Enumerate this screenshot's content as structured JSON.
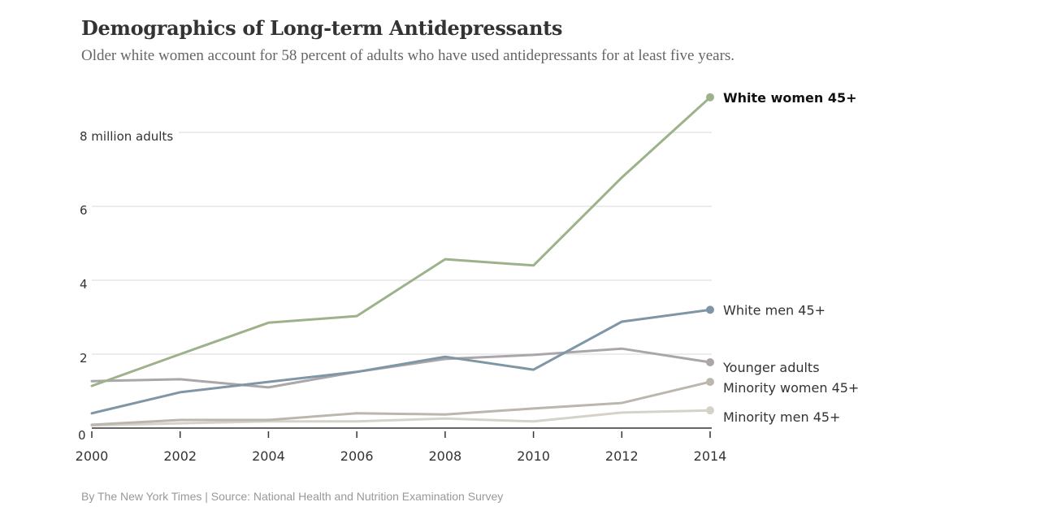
{
  "header": {
    "title": "Demographics of Long-term Antidepressants",
    "subtitle": "Older white women account for 58 percent of adults who have used antidepressants for at least five years."
  },
  "footer": {
    "credit": "By The New York Times | Source: National Health and Nutrition Examination Survey"
  },
  "chart_data": {
    "type": "line",
    "title": "Demographics of Long-term Antidepressants",
    "xlabel": "",
    "ylabel": "million adults",
    "x": [
      2000,
      2002,
      2004,
      2006,
      2008,
      2010,
      2012,
      2014
    ],
    "x_tick_labels": [
      "2000",
      "2002",
      "2004",
      "2006",
      "2008",
      "2010",
      "2012",
      "2014"
    ],
    "y_ticks": [
      0,
      2,
      4,
      6,
      8
    ],
    "y_tick_labels": [
      "0",
      "2",
      "4",
      "6",
      "8 million adults"
    ],
    "ylim": [
      0,
      9
    ],
    "xlim": [
      2000,
      2014
    ],
    "grid": true,
    "legend": "direct labels at line ends (right)",
    "series": [
      {
        "name": "White women 45+",
        "color": "#9db28a",
        "bold_label": true,
        "values": [
          1.14,
          2.0,
          2.85,
          3.03,
          4.57,
          4.4,
          6.78,
          8.95
        ]
      },
      {
        "name": "White men 45+",
        "color": "#7f96a6",
        "bold_label": false,
        "values": [
          0.4,
          0.97,
          1.25,
          1.52,
          1.93,
          1.58,
          2.88,
          3.2
        ]
      },
      {
        "name": "Younger adults",
        "color": "#aba6aa",
        "bold_label": false,
        "values": [
          1.27,
          1.32,
          1.1,
          1.52,
          1.87,
          1.98,
          2.15,
          1.78
        ]
      },
      {
        "name": "Minority women 45+",
        "color": "#bbb7ae",
        "bold_label": false,
        "values": [
          0.09,
          0.22,
          0.22,
          0.4,
          0.37,
          0.53,
          0.68,
          1.25
        ]
      },
      {
        "name": "Minority men 45+",
        "color": "#d4d2c9",
        "bold_label": false,
        "values": [
          0.07,
          0.13,
          0.18,
          0.18,
          0.26,
          0.18,
          0.42,
          0.48
        ]
      }
    ]
  }
}
